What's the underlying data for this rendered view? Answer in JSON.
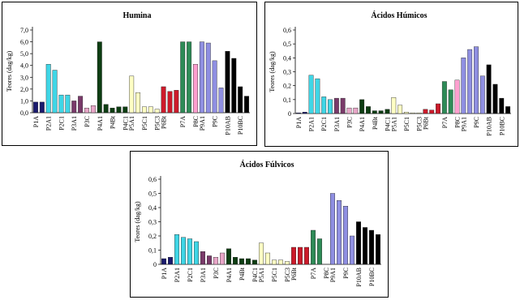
{
  "chart_data": [
    {
      "type": "bar",
      "title": "Humina",
      "y_label": "Teores (dag/kg)",
      "categories": [
        "P1A",
        null,
        "P2A1",
        null,
        "P2C1",
        null,
        "P3A1",
        null,
        "P3C",
        null,
        "P4A1",
        null,
        "P4Bt",
        null,
        "P4C1",
        "P5A1",
        null,
        "P5C1",
        null,
        "P5C3",
        "P6Bt",
        null,
        null,
        "P7A",
        null,
        "P8C",
        "P9A1",
        null,
        "P9C",
        null,
        "P10AB",
        null,
        "P10BC",
        null
      ],
      "values": [
        0.9,
        0.9,
        4.1,
        3.6,
        1.5,
        1.5,
        1.0,
        1.4,
        0.4,
        0.6,
        6.0,
        0.7,
        0.4,
        0.5,
        0.5,
        3.1,
        1.7,
        0.5,
        0.5,
        0.3,
        2.2,
        1.8,
        1.9,
        6.0,
        6.0,
        4.1,
        6.0,
        5.9,
        4.4,
        2.1,
        5.2,
        4.6,
        2.2,
        1.4
      ],
      "colors": [
        "#1a1a6e",
        "#1a1a6e",
        "#3fd6e6",
        "#3fd6e6",
        "#3fd6e6",
        "#3fd6e6",
        "#7a3a6a",
        "#7a3a6a",
        "#e8a6c8",
        "#e8a6c8",
        "#0d3d12",
        "#0d3d12",
        "#0d3d12",
        "#0d3d12",
        "#0d3d12",
        "#ffffc4",
        "#ffffc4",
        "#ffffc4",
        "#ffffc4",
        "#ffffc4",
        "#cc1a2a",
        "#cc1a2a",
        "#cc1a2a",
        "#2e8b57",
        "#2e8b57",
        "#ff9fcf",
        "#8f8fe2",
        "#8f8fe2",
        "#8f8fe2",
        "#8f8fe2",
        "#000000",
        "#000000",
        "#000000",
        "#000000"
      ],
      "ylim": [
        0,
        7
      ],
      "yticks": [
        {
          "value": 0,
          "label": "0,0"
        },
        {
          "value": 1,
          "label": "1,0"
        },
        {
          "value": 2,
          "label": "2,0"
        },
        {
          "value": 3,
          "label": "3,0"
        },
        {
          "value": 4,
          "label": "4,0"
        },
        {
          "value": 5,
          "label": "5,0"
        },
        {
          "value": 6,
          "label": "6,0"
        },
        {
          "value": 7,
          "label": "7,0"
        }
      ]
    },
    {
      "type": "bar",
      "title": "Ácidos Húmicos",
      "y_label": "Teores (dag/kg)",
      "categories": [
        "P1A",
        null,
        "P2A1",
        null,
        "P2C1",
        null,
        "P3A1",
        null,
        "P3C",
        null,
        "P4A1",
        null,
        "P4Bt",
        null,
        "P4C1",
        "P5A1",
        null,
        "P5C1",
        null,
        "P5C3",
        "P6Bt",
        null,
        null,
        "P7A",
        null,
        "P8C",
        "P9A1",
        null,
        "P9C",
        null,
        "P10AB",
        null,
        "P10BC",
        null
      ],
      "values": [
        0.005,
        0.01,
        0.275,
        0.25,
        0.12,
        0.1,
        0.11,
        0.11,
        0.04,
        0.04,
        0.1,
        0.05,
        0.02,
        0.02,
        0.03,
        0.115,
        0.06,
        0.01,
        0.005,
        0.005,
        0.03,
        0.025,
        0.07,
        0.23,
        0.17,
        0.24,
        0.4,
        0.46,
        0.48,
        0.27,
        0.35,
        0.21,
        0.11,
        0.05
      ],
      "colors": [
        "#1a1a6e",
        "#1a1a6e",
        "#3fd6e6",
        "#3fd6e6",
        "#3fd6e6",
        "#3fd6e6",
        "#7a3a6a",
        "#7a3a6a",
        "#e8a6c8",
        "#e8a6c8",
        "#0d3d12",
        "#0d3d12",
        "#0d3d12",
        "#0d3d12",
        "#0d3d12",
        "#ffffc4",
        "#ffffc4",
        "#ffffc4",
        "#ffffc4",
        "#ffffc4",
        "#cc1a2a",
        "#cc1a2a",
        "#cc1a2a",
        "#2e8b57",
        "#2e8b57",
        "#ff9fcf",
        "#8f8fe2",
        "#8f8fe2",
        "#8f8fe2",
        "#8f8fe2",
        "#000000",
        "#000000",
        "#000000",
        "#000000"
      ],
      "ylim": [
        0,
        0.6
      ],
      "yticks": [
        0,
        {
          "value": 0.1,
          "label": "0,1"
        },
        {
          "value": 0.2,
          "label": "0,2"
        },
        {
          "value": 0.3,
          "label": "0,3"
        },
        {
          "value": 0.4,
          "label": "0,4"
        },
        {
          "value": 0.5,
          "label": "0,5"
        },
        {
          "value": 0.6,
          "label": "0,6"
        }
      ]
    },
    {
      "type": "bar",
      "title": "Ácidos Fúlvicos",
      "y_label": "Teores (dag/kg)",
      "categories": [
        "P1A",
        null,
        "P2A1",
        null,
        "P2C1",
        null,
        "P3A1",
        null,
        "P3C",
        null,
        "P4A1",
        null,
        "P4Bt",
        null,
        "P4C1",
        "P5A1",
        null,
        "P5C1",
        null,
        "P5C3",
        "P6Bt",
        null,
        null,
        "P7A",
        null,
        "P8C",
        "P9A1",
        null,
        "P9C",
        null,
        "P10AB",
        null,
        "P10BC",
        null
      ],
      "values": [
        0.04,
        0.05,
        0.21,
        0.19,
        0.18,
        0.16,
        0.09,
        0.06,
        0.05,
        0.08,
        0.11,
        0.05,
        0.04,
        0.04,
        0.03,
        0.15,
        0.08,
        0.03,
        0.03,
        0.02,
        0.12,
        0.12,
        0.12,
        0.24,
        0.18,
        0,
        0.5,
        0.45,
        0.41,
        0.2,
        0.3,
        0.26,
        0.24,
        0.21
      ],
      "colors": [
        "#1a1a6e",
        "#1a1a6e",
        "#3fd6e6",
        "#3fd6e6",
        "#3fd6e6",
        "#3fd6e6",
        "#7a3a6a",
        "#7a3a6a",
        "#e8a6c8",
        "#e8a6c8",
        "#0d3d12",
        "#0d3d12",
        "#0d3d12",
        "#0d3d12",
        "#0d3d12",
        "#ffffc4",
        "#ffffc4",
        "#ffffc4",
        "#ffffc4",
        "#ffffc4",
        "#cc1a2a",
        "#cc1a2a",
        "#cc1a2a",
        "#2e8b57",
        "#2e8b57",
        "#ff9fcf",
        "#8f8fe2",
        "#8f8fe2",
        "#8f8fe2",
        "#8f8fe2",
        "#000000",
        "#000000",
        "#000000",
        "#000000"
      ],
      "ylim": [
        0,
        0.6
      ],
      "yticks": [
        0,
        {
          "value": 0.1,
          "label": "0,1"
        },
        {
          "value": 0.2,
          "label": "0,2"
        },
        {
          "value": 0.3,
          "label": "0,3"
        },
        {
          "value": 0.4,
          "label": "0,4"
        },
        {
          "value": 0.5,
          "label": "0,5"
        },
        {
          "value": 0.6,
          "label": "0,6"
        }
      ]
    }
  ]
}
